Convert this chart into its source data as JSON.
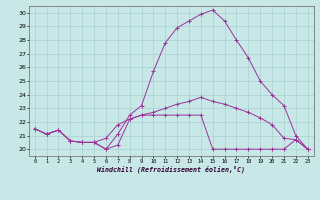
{
  "xlabel": "Windchill (Refroidissement éolien,°C)",
  "x": [
    0,
    1,
    2,
    3,
    4,
    5,
    6,
    7,
    8,
    9,
    10,
    11,
    12,
    13,
    14,
    15,
    16,
    17,
    18,
    19,
    20,
    21,
    22,
    23
  ],
  "line1": [
    21.5,
    21.1,
    21.4,
    20.6,
    20.5,
    20.5,
    20.0,
    20.3,
    22.2,
    22.5,
    22.5,
    22.5,
    22.5,
    22.5,
    22.5,
    20.0,
    20.0,
    20.0,
    20.0,
    20.0,
    20.0,
    20.0,
    20.7,
    20.0
  ],
  "line2": [
    21.5,
    21.1,
    21.4,
    20.6,
    20.5,
    20.5,
    20.8,
    21.8,
    22.2,
    22.5,
    22.7,
    23.0,
    23.3,
    23.5,
    23.8,
    23.5,
    23.3,
    23.0,
    22.7,
    22.3,
    21.8,
    20.8,
    20.7,
    20.0
  ],
  "line3": [
    21.5,
    21.1,
    21.4,
    20.6,
    20.5,
    20.5,
    20.0,
    21.1,
    22.5,
    23.2,
    25.7,
    27.8,
    28.9,
    29.4,
    29.9,
    30.2,
    29.4,
    28.0,
    26.7,
    25.0,
    24.0,
    23.2,
    21.0,
    20.0
  ],
  "line_color": "#993399",
  "bg_color": "#c8e8e8",
  "grid_color": "#a8d0d0",
  "ylim": [
    19.5,
    30.5
  ],
  "xlim": [
    -0.5,
    23.5
  ],
  "yticks": [
    20,
    21,
    22,
    23,
    24,
    25,
    26,
    27,
    28,
    29,
    30
  ],
  "xticks": [
    0,
    1,
    2,
    3,
    4,
    5,
    6,
    7,
    8,
    9,
    10,
    11,
    12,
    13,
    14,
    15,
    16,
    17,
    18,
    19,
    20,
    21,
    22,
    23
  ],
  "xtick_labels": [
    "0",
    "1",
    "2",
    "3",
    "4",
    "5",
    "6",
    "7",
    "8",
    "9",
    "10",
    "11",
    "12",
    "13",
    "14",
    "15",
    "16",
    "17",
    "18",
    "19",
    "20",
    "21",
    "22",
    "23"
  ]
}
